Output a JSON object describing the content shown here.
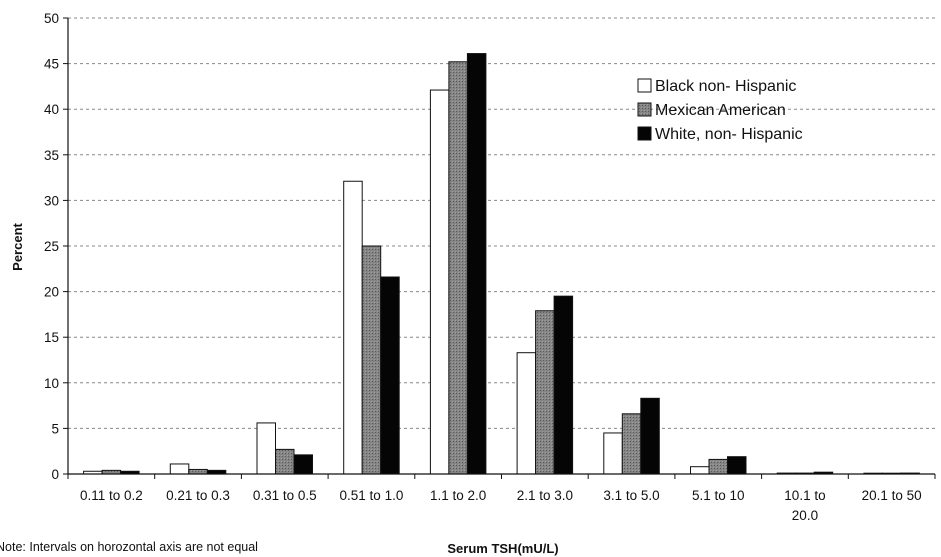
{
  "chart_data": {
    "type": "bar",
    "title": "",
    "xlabel": "Serum TSH(mU/L)",
    "ylabel": "Percent",
    "ylim": [
      0,
      50
    ],
    "yticks": [
      0,
      5,
      10,
      15,
      20,
      25,
      30,
      35,
      40,
      45,
      50
    ],
    "grid": "horizontal dashed",
    "legend_position": "top-right",
    "categories": [
      [
        "0.11 to 0.2"
      ],
      [
        "0.21 to 0.3"
      ],
      [
        "0.31 to 0.5"
      ],
      [
        "0.51 to 1.0"
      ],
      [
        "1.1 to 2.0"
      ],
      [
        "2.1 to 3.0"
      ],
      [
        "3.1 to 5.0"
      ],
      [
        "5.1 to 10"
      ],
      [
        "10.1 to",
        "20.0"
      ],
      [
        "20.1 to 50"
      ]
    ],
    "series": [
      {
        "name": "Black non- Hispanic",
        "color": "#ffffff",
        "values": [
          0.3,
          1.1,
          5.6,
          32.1,
          42.1,
          13.3,
          4.5,
          0.8,
          0.1,
          0.0
        ]
      },
      {
        "name": "Mexican American",
        "color": "#7a7a7a",
        "values": [
          0.4,
          0.5,
          2.7,
          25.0,
          45.2,
          17.9,
          6.6,
          1.6,
          0.1,
          0.0
        ]
      },
      {
        "name": "White, non- Hispanic",
        "color": "#050505",
        "values": [
          0.3,
          0.4,
          2.1,
          21.6,
          46.1,
          19.5,
          8.3,
          1.9,
          0.2,
          0.1
        ]
      }
    ]
  },
  "note": "Note: Intervals on horozontal axis are not equal"
}
